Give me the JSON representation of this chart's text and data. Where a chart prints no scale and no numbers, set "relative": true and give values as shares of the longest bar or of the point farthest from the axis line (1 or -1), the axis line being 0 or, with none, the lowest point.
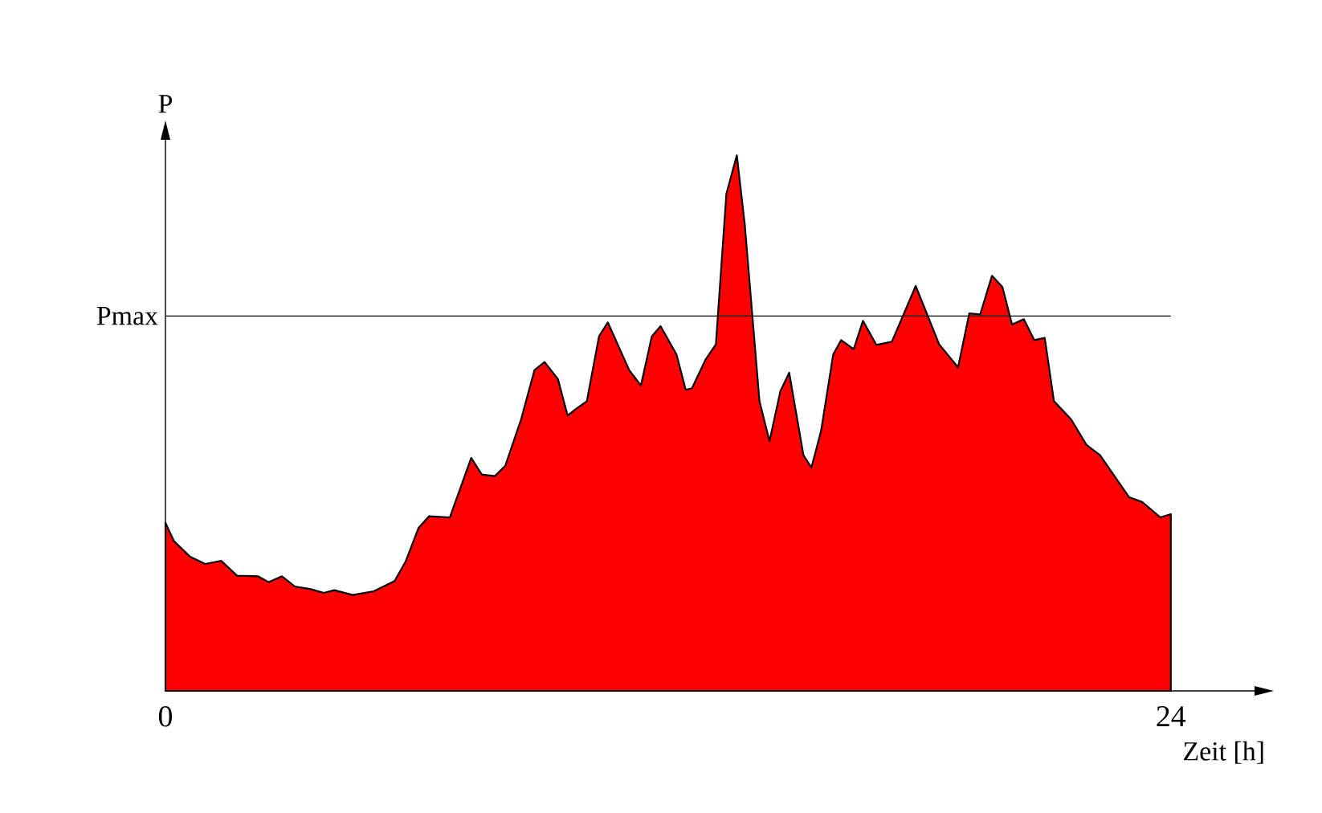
{
  "chart_data": {
    "type": "area",
    "relative": true,
    "xlabel": "Zeit [h]",
    "ylabel": "P",
    "xlim": [
      0,
      26
    ],
    "xticks": [
      0,
      24
    ],
    "ref_lines": [
      {
        "axis": "y",
        "value": 0.7,
        "label": "Pmax",
        "color": "#000000"
      }
    ],
    "series": [
      {
        "color": "#ff0000",
        "x": [
          0,
          0.2,
          0.58,
          0.95,
          1.33,
          1.71,
          2.21,
          2.46,
          2.78,
          3.09,
          3.47,
          3.78,
          4.03,
          4.47,
          4.97,
          5.47,
          5.73,
          6.04,
          6.29,
          6.79,
          7.3,
          7.55,
          7.86,
          8.11,
          8.49,
          8.81,
          9.05,
          9.37,
          9.6,
          9.81,
          10.06,
          10.35,
          10.56,
          11.07,
          11.35,
          11.61,
          11.82,
          12.2,
          12.42,
          12.57,
          12.89,
          13.14,
          13.39,
          13.64,
          13.83,
          14.18,
          14.42,
          14.68,
          14.89,
          15.23,
          15.42,
          15.65,
          15.94,
          16.13,
          16.43,
          16.65,
          16.97,
          17.34,
          17.91,
          18.47,
          18.92,
          19.19,
          19.45,
          19.73,
          19.98,
          20.21,
          20.49,
          20.74,
          20.99,
          21.21,
          21.62,
          21.99,
          22.31,
          23.0,
          23.31,
          23.75,
          24.0
        ],
        "values": [
          0.314,
          0.28,
          0.251,
          0.237,
          0.243,
          0.215,
          0.214,
          0.203,
          0.214,
          0.195,
          0.19,
          0.183,
          0.188,
          0.179,
          0.186,
          0.205,
          0.241,
          0.304,
          0.326,
          0.324,
          0.435,
          0.404,
          0.401,
          0.42,
          0.507,
          0.599,
          0.614,
          0.582,
          0.514,
          0.527,
          0.541,
          0.662,
          0.688,
          0.599,
          0.57,
          0.662,
          0.681,
          0.628,
          0.562,
          0.565,
          0.618,
          0.647,
          0.928,
          1.0,
          0.87,
          0.541,
          0.466,
          0.56,
          0.594,
          0.44,
          0.417,
          0.485,
          0.628,
          0.655,
          0.638,
          0.691,
          0.646,
          0.652,
          0.756,
          0.647,
          0.604,
          0.705,
          0.703,
          0.775,
          0.754,
          0.684,
          0.694,
          0.655,
          0.659,
          0.541,
          0.507,
          0.459,
          0.44,
          0.362,
          0.353,
          0.324,
          0.33
        ]
      }
    ]
  }
}
